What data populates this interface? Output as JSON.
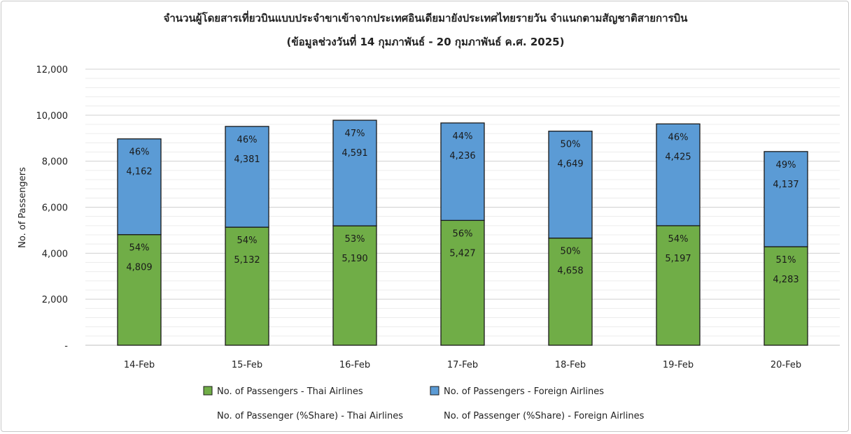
{
  "chart_data": {
    "type": "bar",
    "stacked": true,
    "title": "จำนวนผู้โดยสารเที่ยวบินแบบประจำขาเข้าจากประเทศอินเดียมายังประเทศไทยรายวัน  จำแนกตามสัญชาติสายการบิน",
    "subtitle": "(ข้อมูลช่วงวันที่ 14 กุมภาพันธ์ - 20 กุมภาพันธ์ ค.ศ. 2025)",
    "xlabel": "",
    "ylabel": "No. of Passengers",
    "ylim": [
      0,
      12000
    ],
    "yticks": [
      "-",
      "2,000",
      "4,000",
      "6,000",
      "8,000",
      "10,000",
      "12,000"
    ],
    "ytick_values": [
      0,
      2000,
      4000,
      6000,
      8000,
      10000,
      12000
    ],
    "grid": true,
    "legend_position": "bottom",
    "categories": [
      "14-Feb",
      "15-Feb",
      "16-Feb",
      "17-Feb",
      "18-Feb",
      "19-Feb",
      "20-Feb"
    ],
    "series": [
      {
        "name": "No. of Passengers - Thai Airlines",
        "color": "#70ad47",
        "values": [
          4809,
          5132,
          5190,
          5427,
          4658,
          5197,
          4283
        ],
        "labels": [
          "4,809",
          "5,132",
          "5,190",
          "5,427",
          "4,658",
          "5,197",
          "4,283"
        ],
        "share_labels": [
          "54%",
          "54%",
          "53%",
          "56%",
          "50%",
          "54%",
          "51%"
        ]
      },
      {
        "name": "No. of Passengers - Foreign Airlines",
        "color": "#5b9bd5",
        "values": [
          4162,
          4381,
          4591,
          4236,
          4649,
          4425,
          4137
        ],
        "labels": [
          "4,162",
          "4,381",
          "4,591",
          "4,236",
          "4,649",
          "4,425",
          "4,137"
        ],
        "share_labels": [
          "46%",
          "46%",
          "47%",
          "44%",
          "50%",
          "46%",
          "49%"
        ]
      }
    ],
    "legend": [
      {
        "label": "No. of Passengers - Thai Airlines",
        "color": "#70ad47",
        "swatch": true
      },
      {
        "label": "No. of Passengers - Foreign Airlines",
        "color": "#5b9bd5",
        "swatch": true
      },
      {
        "label": "No. of Passenger (%Share) - Thai Airlines",
        "swatch": false
      },
      {
        "label": "No. of Passenger (%Share) - Foreign Airlines",
        "swatch": false
      }
    ]
  }
}
